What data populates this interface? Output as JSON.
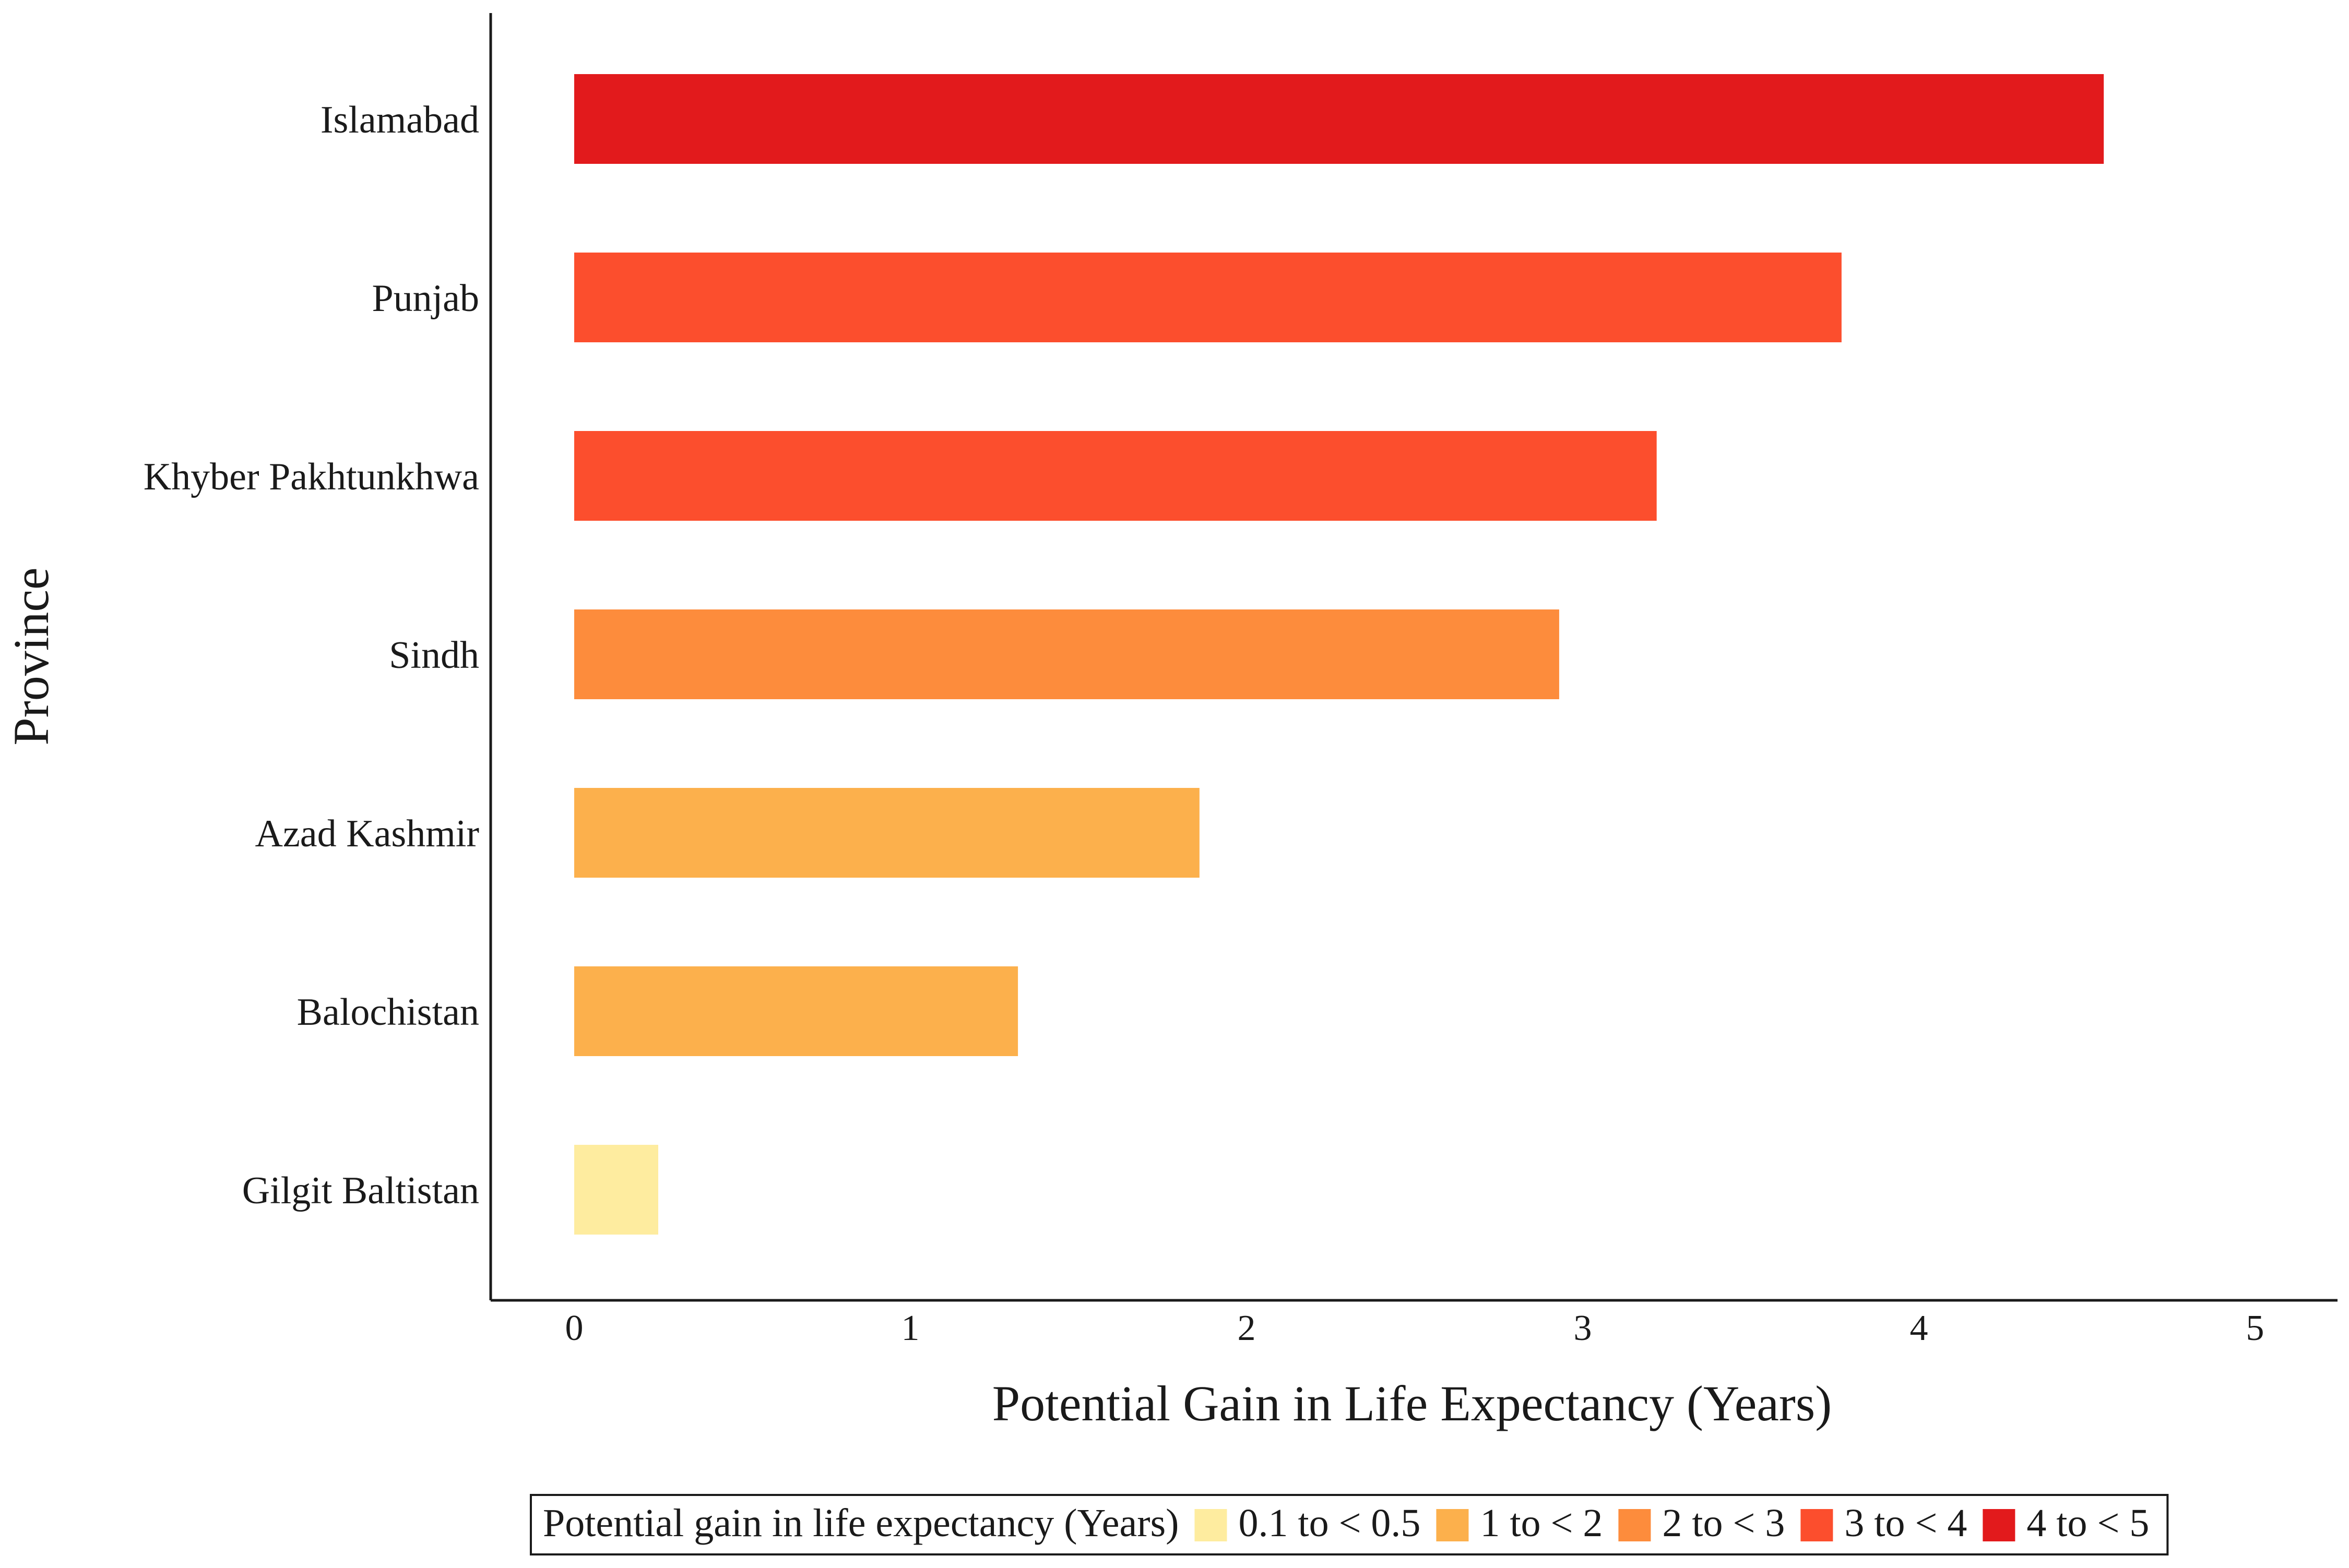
{
  "chart_data": {
    "type": "bar",
    "orientation": "horizontal",
    "xlabel": "Potential Gain in Life Expectancy  (Years)",
    "ylabel": "Province",
    "xlim": [
      0,
      5
    ],
    "xticks": [
      0,
      1,
      2,
      3,
      4,
      5
    ],
    "categories": [
      "Islamabad",
      "Punjab",
      "Khyber Pakhtunkhwa",
      "Sindh",
      "Azad Kashmir",
      "Balochistan",
      "Gilgit Baltistan"
    ],
    "values": [
      4.55,
      3.77,
      3.22,
      2.93,
      1.86,
      1.32,
      0.25
    ],
    "value_classes": [
      "4 to < 5",
      "3 to < 4",
      "3 to < 4",
      "2 to < 3",
      "1 to < 2",
      "1 to < 2",
      "0.1 to < 0.5"
    ],
    "grid": false,
    "legend": {
      "position": "bottom",
      "title": "Potential gain in life expectancy (Years)",
      "entries": [
        {
          "label": "0.1 to < 0.5",
          "color": "#FEEC9F"
        },
        {
          "label": "1 to < 2",
          "color": "#FCB04C"
        },
        {
          "label": "2 to < 3",
          "color": "#FD8C3C"
        },
        {
          "label": "3 to < 4",
          "color": "#FC4E2D"
        },
        {
          "label": "4 to < 5",
          "color": "#E21A1C"
        }
      ]
    }
  }
}
